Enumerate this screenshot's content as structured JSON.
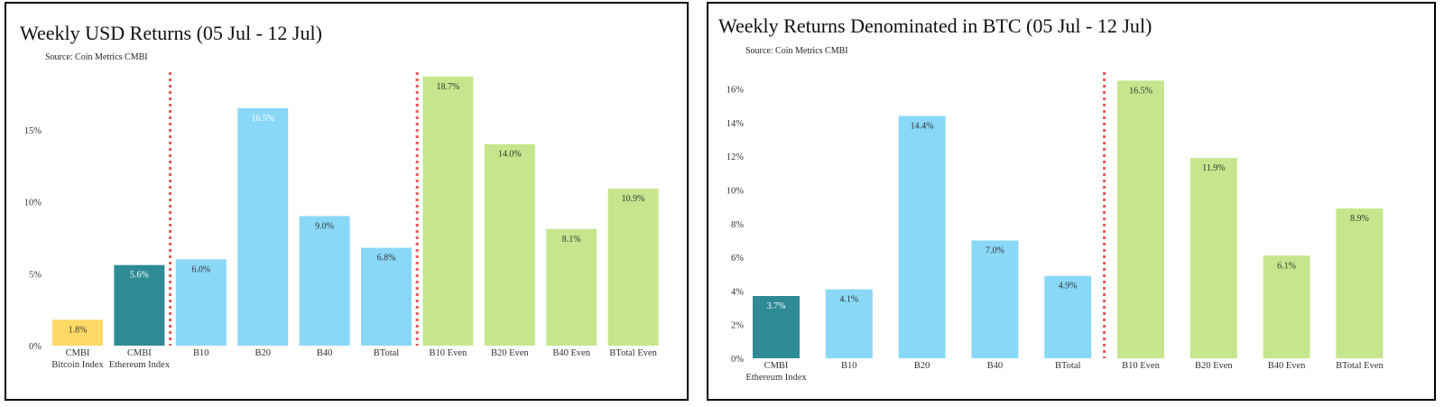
{
  "chart_data": [
    {
      "type": "bar",
      "title": "Weekly USD Returns (05 Jul - 12 Jul)",
      "source": "Source: Coin Metrics CMBI",
      "ylim": [
        0,
        19
      ],
      "yticks": [
        "0%",
        "5%",
        "10%",
        "15%"
      ],
      "ytick_values": [
        0,
        5,
        10,
        15
      ],
      "grid": false,
      "categories": [
        [
          "CMBI",
          "Bitcoin Index"
        ],
        [
          "CMBI",
          "Ethereum Index"
        ],
        [
          "B10"
        ],
        [
          "B20"
        ],
        [
          "B40"
        ],
        [
          "BTotal"
        ],
        [
          "B10 Even"
        ],
        [
          "B20 Even"
        ],
        [
          "B40 Even"
        ],
        [
          "BTotal Even"
        ]
      ],
      "values": [
        1.8,
        5.6,
        6.0,
        16.5,
        9.0,
        6.8,
        18.7,
        14.0,
        8.1,
        10.9
      ],
      "labels": [
        "1.8%",
        "5.6%",
        "6.0%",
        "16.5%",
        "9.0%",
        "6.8%",
        "18.7%",
        "14.0%",
        "8.1%",
        "10.9%"
      ],
      "colors": [
        "#ffd966",
        "#2e8b96",
        "#8ad8f8",
        "#8ad8f8",
        "#8ad8f8",
        "#8ad8f8",
        "#c5e68c",
        "#c5e68c",
        "#c5e68c",
        "#c5e68c"
      ],
      "label_colors": [
        "#333333",
        "#ffffff",
        "#333333",
        "#ffffff",
        "#333333",
        "#333333",
        "#333333",
        "#333333",
        "#333333",
        "#333333"
      ],
      "dividers_after": [
        1,
        5
      ]
    },
    {
      "type": "bar",
      "title": "Weekly Returns Denominated in BTC (05 Jul - 12 Jul)",
      "source": "Source: Coin Metrics CMBI",
      "ylim": [
        0,
        17
      ],
      "yticks": [
        "0%",
        "2%",
        "4%",
        "6%",
        "8%",
        "10%",
        "12%",
        "14%",
        "16%"
      ],
      "ytick_values": [
        0,
        2,
        4,
        6,
        8,
        10,
        12,
        14,
        16
      ],
      "grid": false,
      "categories": [
        [
          "CMBI",
          "Ethereum Index"
        ],
        [
          "B10"
        ],
        [
          "B20"
        ],
        [
          "B40"
        ],
        [
          "BTotal"
        ],
        [
          "B10 Even"
        ],
        [
          "B20 Even"
        ],
        [
          "B40 Even"
        ],
        [
          "BTotal Even"
        ]
      ],
      "values": [
        3.7,
        4.1,
        14.4,
        7.0,
        4.9,
        16.5,
        11.9,
        6.1,
        8.9
      ],
      "labels": [
        "3.7%",
        "4.1%",
        "14.4%",
        "7.0%",
        "4.9%",
        "16.5%",
        "11.9%",
        "6.1%",
        "8.9%"
      ],
      "colors": [
        "#2e8b96",
        "#8ad8f8",
        "#8ad8f8",
        "#8ad8f8",
        "#8ad8f8",
        "#c5e68c",
        "#c5e68c",
        "#c5e68c",
        "#c5e68c"
      ],
      "label_colors": [
        "#ffffff",
        "#333333",
        "#333333",
        "#333333",
        "#333333",
        "#333333",
        "#333333",
        "#333333",
        "#333333"
      ],
      "dividers_after": [
        4
      ]
    }
  ]
}
